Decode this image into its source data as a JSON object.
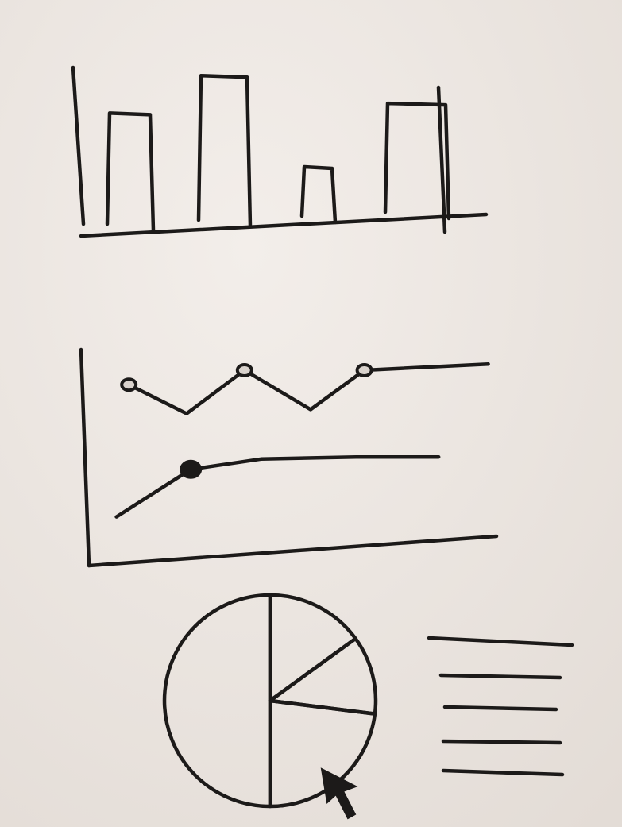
{
  "chart_data": [
    {
      "type": "bar",
      "values": [
        72,
        95,
        39,
        78
      ],
      "ylim": [
        0,
        100
      ]
    },
    {
      "type": "line",
      "xlim": [
        0,
        100
      ],
      "ylim": [
        0,
        100
      ],
      "series": [
        {
          "x": [
            11,
            25,
            39,
            55,
            68,
            98
          ],
          "values": [
            83,
            69,
            90,
            71,
            90,
            93
          ],
          "markers": [
            0,
            2,
            4
          ]
        },
        {
          "x": [
            8,
            26,
            43,
            66,
            86
          ],
          "values": [
            19,
            42,
            47,
            48,
            48
          ],
          "markers": [
            1
          ]
        }
      ]
    },
    {
      "type": "pie",
      "values": [
        15,
        12,
        23,
        50
      ]
    }
  ]
}
